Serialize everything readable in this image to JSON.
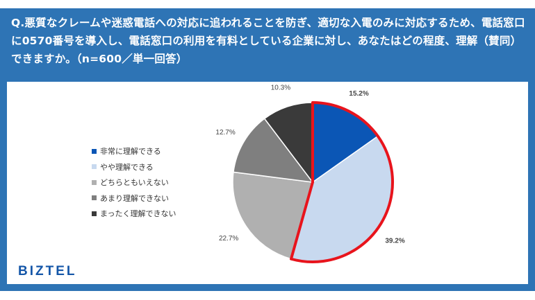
{
  "title": "Q.悪質なクレームや迷惑電話への対応に追われることを防ぎ、適切な入電のみに対応するため、電話窓口に0570番号を導入し、電話窓口の利用を有料としている企業に対し、あなたはどの程度、理解（賛同）できますか。（n=600／単一回答）",
  "logo": "BIZTEL",
  "chart_data": {
    "type": "pie",
    "title": "Q.悪質なクレームや迷惑電話への対応に追われることを防ぎ、適切な入電のみに対応するため、電話窓口に0570番号を導入し、電話窓口の利用を有料としている企業に対し、あなたはどの程度、理解（賛同）できますか。（n=600／単一回答）",
    "categories": [
      "非常に理解できる",
      "やや理解できる",
      "どちらともいえない",
      "あまり理解できない",
      "まったく理解できない"
    ],
    "values": [
      15.2,
      39.2,
      22.7,
      12.7,
      10.3
    ],
    "labels": [
      "15.2%",
      "39.2%",
      "22.7%",
      "12.7%",
      "10.3%"
    ],
    "colors": [
      "#0b56b5",
      "#c8d9ef",
      "#b0b0b0",
      "#7f7f7f",
      "#3a3a3a"
    ],
    "highlight_color": "#e8141c",
    "legend_position": "left"
  }
}
